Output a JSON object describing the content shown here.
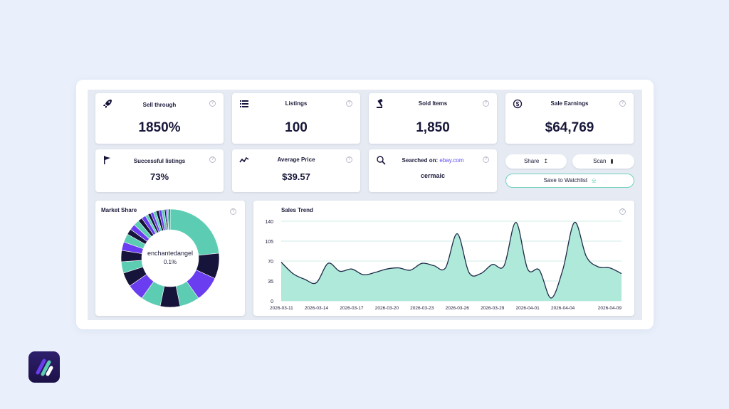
{
  "stats": {
    "sell_through": {
      "label": "Sell through",
      "value": "1850%"
    },
    "listings": {
      "label": "Listings",
      "value": "100"
    },
    "sold_items": {
      "label": "Sold Items",
      "value": "1,850"
    },
    "sale_earnings": {
      "label": "Sale Earnings",
      "value": "$64,769"
    },
    "successful_listings": {
      "label": "Successful listings",
      "value": "73%"
    },
    "average_price": {
      "label": "Average Price",
      "value": "$39.57"
    },
    "searched_on": {
      "label": "Searched on:",
      "site": "ebay.com",
      "query": "cermaic"
    }
  },
  "actions": {
    "share_label": "Share",
    "scan_label": "Scan",
    "watchlist_label": "Save to Watchlist"
  },
  "market_share": {
    "title": "Market Share",
    "center_name": "enchantedangel",
    "center_value": "0.1%"
  },
  "sales_trend": {
    "title": "Sales Trend"
  },
  "help_glyph": "?",
  "colors": {
    "teal": "#5ccdb3",
    "dark_navy": "#16143a",
    "purple": "#6a3df0",
    "accent_border": "#6fd1bf",
    "link": "#5a4bf0"
  },
  "chart_data": [
    {
      "type": "pie",
      "title": "Market Share",
      "center_label": "enchantedangel 0.1%",
      "values": [
        25,
        9,
        9,
        7,
        7,
        7,
        6,
        5,
        4,
        4,
        3,
        3,
        2,
        2,
        2,
        1.5,
        1.5,
        1,
        1,
        1,
        1,
        1,
        1,
        1,
        0.5,
        0.5,
        0.5,
        0.5
      ],
      "colors": [
        "#5ccdb3",
        "#16143a",
        "#6a3df0",
        "#5ccdb3",
        "#16143a",
        "#5ccdb3",
        "#6a3df0",
        "#16143a",
        "#5ccdb3",
        "#16143a",
        "#6a3df0",
        "#5ccdb3",
        "#16143a",
        "#6a3df0",
        "#5ccdb3",
        "#16143a",
        "#6a3df0",
        "#5ccdb3",
        "#16143a",
        "#6a3df0",
        "#5ccdb3",
        "#16143a",
        "#6a3df0",
        "#5ccdb3",
        "#16143a",
        "#6a3df0",
        "#5ccdb3",
        "#16143a"
      ]
    },
    {
      "type": "area",
      "title": "Sales Trend",
      "ylim": [
        0,
        140
      ],
      "yticks": [
        0,
        35,
        70,
        105,
        140
      ],
      "xticks": [
        "2026-03-11",
        "2026-03-14",
        "2026-03-17",
        "2026-03-20",
        "2026-03-23",
        "2026-03-26",
        "2026-03-29",
        "2026-04-01",
        "2026-04-04",
        "2026-04-09"
      ],
      "x": [
        "2026-03-11",
        "2026-03-12",
        "2026-03-13",
        "2026-03-14",
        "2026-03-15",
        "2026-03-16",
        "2026-03-17",
        "2026-03-18",
        "2026-03-19",
        "2026-03-20",
        "2026-03-21",
        "2026-03-22",
        "2026-03-23",
        "2026-03-24",
        "2026-03-25",
        "2026-03-26",
        "2026-03-27",
        "2026-03-28",
        "2026-03-29",
        "2026-03-30",
        "2026-03-31",
        "2026-04-01",
        "2026-04-02",
        "2026-04-03",
        "2026-04-04",
        "2026-04-05",
        "2026-04-06",
        "2026-04-07",
        "2026-04-08",
        "2026-04-09"
      ],
      "values": [
        68,
        48,
        38,
        32,
        66,
        52,
        56,
        46,
        50,
        56,
        58,
        54,
        66,
        62,
        58,
        118,
        50,
        48,
        64,
        62,
        138,
        56,
        54,
        5,
        55,
        138,
        78,
        60,
        58,
        48
      ],
      "grid": true
    }
  ]
}
